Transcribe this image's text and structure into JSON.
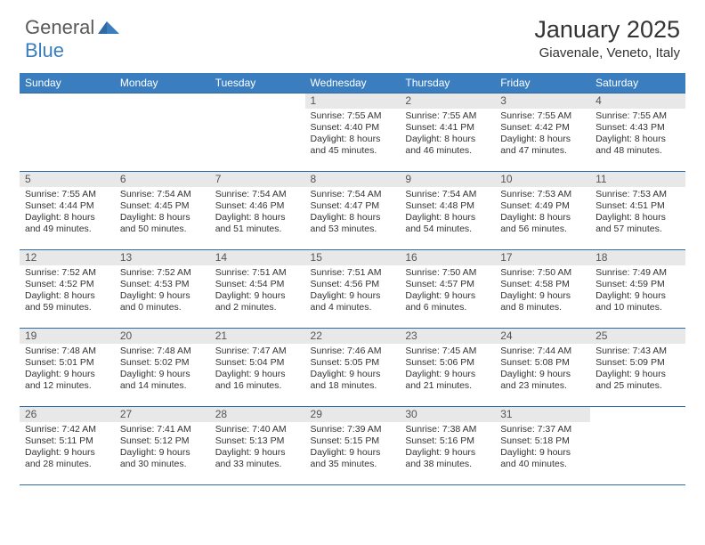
{
  "logo": {
    "general": "General",
    "blue": "Blue"
  },
  "header": {
    "title": "January 2025",
    "location": "Giavenale, Veneto, Italy"
  },
  "colors": {
    "header_bg": "#3a7ebf",
    "header_border": "#2e6aa3",
    "daynum_bg": "#e8e8e8"
  },
  "weekdays": [
    "Sunday",
    "Monday",
    "Tuesday",
    "Wednesday",
    "Thursday",
    "Friday",
    "Saturday"
  ],
  "weeks": [
    [
      {
        "n": "",
        "sr": "",
        "ss": "",
        "dl": ""
      },
      {
        "n": "",
        "sr": "",
        "ss": "",
        "dl": ""
      },
      {
        "n": "",
        "sr": "",
        "ss": "",
        "dl": ""
      },
      {
        "n": "1",
        "sr": "7:55 AM",
        "ss": "4:40 PM",
        "dl": "8 hours and 45 minutes."
      },
      {
        "n": "2",
        "sr": "7:55 AM",
        "ss": "4:41 PM",
        "dl": "8 hours and 46 minutes."
      },
      {
        "n": "3",
        "sr": "7:55 AM",
        "ss": "4:42 PM",
        "dl": "8 hours and 47 minutes."
      },
      {
        "n": "4",
        "sr": "7:55 AM",
        "ss": "4:43 PM",
        "dl": "8 hours and 48 minutes."
      }
    ],
    [
      {
        "n": "5",
        "sr": "7:55 AM",
        "ss": "4:44 PM",
        "dl": "8 hours and 49 minutes."
      },
      {
        "n": "6",
        "sr": "7:54 AM",
        "ss": "4:45 PM",
        "dl": "8 hours and 50 minutes."
      },
      {
        "n": "7",
        "sr": "7:54 AM",
        "ss": "4:46 PM",
        "dl": "8 hours and 51 minutes."
      },
      {
        "n": "8",
        "sr": "7:54 AM",
        "ss": "4:47 PM",
        "dl": "8 hours and 53 minutes."
      },
      {
        "n": "9",
        "sr": "7:54 AM",
        "ss": "4:48 PM",
        "dl": "8 hours and 54 minutes."
      },
      {
        "n": "10",
        "sr": "7:53 AM",
        "ss": "4:49 PM",
        "dl": "8 hours and 56 minutes."
      },
      {
        "n": "11",
        "sr": "7:53 AM",
        "ss": "4:51 PM",
        "dl": "8 hours and 57 minutes."
      }
    ],
    [
      {
        "n": "12",
        "sr": "7:52 AM",
        "ss": "4:52 PM",
        "dl": "8 hours and 59 minutes."
      },
      {
        "n": "13",
        "sr": "7:52 AM",
        "ss": "4:53 PM",
        "dl": "9 hours and 0 minutes."
      },
      {
        "n": "14",
        "sr": "7:51 AM",
        "ss": "4:54 PM",
        "dl": "9 hours and 2 minutes."
      },
      {
        "n": "15",
        "sr": "7:51 AM",
        "ss": "4:56 PM",
        "dl": "9 hours and 4 minutes."
      },
      {
        "n": "16",
        "sr": "7:50 AM",
        "ss": "4:57 PM",
        "dl": "9 hours and 6 minutes."
      },
      {
        "n": "17",
        "sr": "7:50 AM",
        "ss": "4:58 PM",
        "dl": "9 hours and 8 minutes."
      },
      {
        "n": "18",
        "sr": "7:49 AM",
        "ss": "4:59 PM",
        "dl": "9 hours and 10 minutes."
      }
    ],
    [
      {
        "n": "19",
        "sr": "7:48 AM",
        "ss": "5:01 PM",
        "dl": "9 hours and 12 minutes."
      },
      {
        "n": "20",
        "sr": "7:48 AM",
        "ss": "5:02 PM",
        "dl": "9 hours and 14 minutes."
      },
      {
        "n": "21",
        "sr": "7:47 AM",
        "ss": "5:04 PM",
        "dl": "9 hours and 16 minutes."
      },
      {
        "n": "22",
        "sr": "7:46 AM",
        "ss": "5:05 PM",
        "dl": "9 hours and 18 minutes."
      },
      {
        "n": "23",
        "sr": "7:45 AM",
        "ss": "5:06 PM",
        "dl": "9 hours and 21 minutes."
      },
      {
        "n": "24",
        "sr": "7:44 AM",
        "ss": "5:08 PM",
        "dl": "9 hours and 23 minutes."
      },
      {
        "n": "25",
        "sr": "7:43 AM",
        "ss": "5:09 PM",
        "dl": "9 hours and 25 minutes."
      }
    ],
    [
      {
        "n": "26",
        "sr": "7:42 AM",
        "ss": "5:11 PM",
        "dl": "9 hours and 28 minutes."
      },
      {
        "n": "27",
        "sr": "7:41 AM",
        "ss": "5:12 PM",
        "dl": "9 hours and 30 minutes."
      },
      {
        "n": "28",
        "sr": "7:40 AM",
        "ss": "5:13 PM",
        "dl": "9 hours and 33 minutes."
      },
      {
        "n": "29",
        "sr": "7:39 AM",
        "ss": "5:15 PM",
        "dl": "9 hours and 35 minutes."
      },
      {
        "n": "30",
        "sr": "7:38 AM",
        "ss": "5:16 PM",
        "dl": "9 hours and 38 minutes."
      },
      {
        "n": "31",
        "sr": "7:37 AM",
        "ss": "5:18 PM",
        "dl": "9 hours and 40 minutes."
      },
      {
        "n": "",
        "sr": "",
        "ss": "",
        "dl": ""
      }
    ]
  ],
  "labels": {
    "sunrise": "Sunrise:",
    "sunset": "Sunset:",
    "daylight": "Daylight:"
  }
}
